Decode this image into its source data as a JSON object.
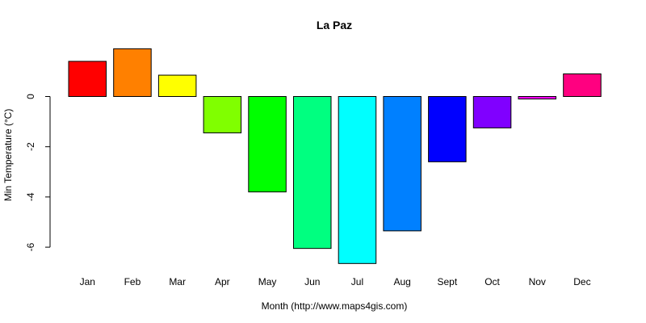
{
  "chart_data": {
    "type": "bar",
    "title": "La Paz",
    "xlabel": "Month (http://www.maps4gis.com)",
    "ylabel": "Min Temperature (°C)",
    "categories": [
      "Jan",
      "Feb",
      "Mar",
      "Apr",
      "May",
      "Jun",
      "Jul",
      "Aug",
      "Sept",
      "Oct",
      "Nov",
      "Dec"
    ],
    "values": [
      1.4,
      1.9,
      0.85,
      -1.45,
      -3.8,
      -6.05,
      -6.65,
      -5.35,
      -2.6,
      -1.25,
      -0.1,
      0.9
    ],
    "colors": [
      "#FF0000",
      "#FF8000",
      "#FFFF00",
      "#80FF00",
      "#00FF00",
      "#00FF80",
      "#00FFFF",
      "#0080FF",
      "#0000FF",
      "#8000FF",
      "#FF00FF",
      "#FF0080"
    ],
    "ylim": [
      -6.7,
      2
    ],
    "yticks": [
      0,
      -2,
      -4,
      -6
    ],
    "ytick_labels": [
      "0",
      "-2",
      "-4",
      "-6"
    ],
    "grid": false,
    "legend": "none"
  }
}
